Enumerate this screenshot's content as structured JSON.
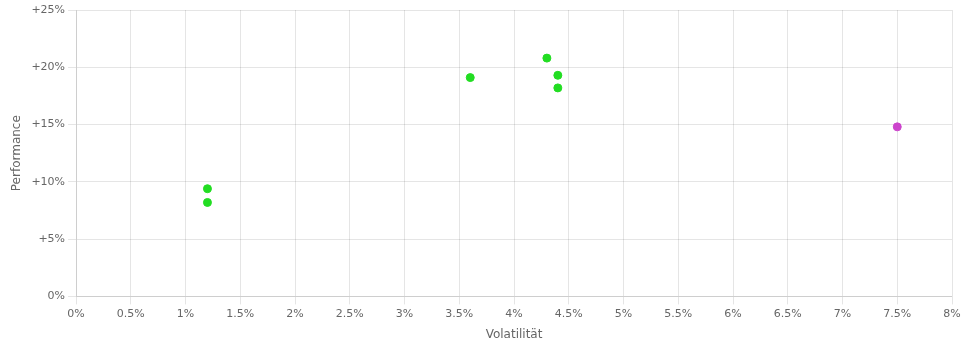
{
  "chart_data": {
    "type": "scatter",
    "xlabel": "Volatilität",
    "ylabel": "Performance",
    "series": [
      {
        "color": "#22dd22",
        "marker": "circle",
        "x": [
          0.012,
          0.012,
          0.036,
          0.043,
          0.044,
          0.044
        ],
        "values": [
          0.094,
          0.082,
          0.191,
          0.208,
          0.193,
          0.182
        ]
      },
      {
        "color": "#cc44cc",
        "marker": "circle",
        "x": [
          0.075
        ],
        "values": [
          0.148
        ]
      }
    ],
    "xlim": [
      0.0,
      0.08
    ],
    "ylim": [
      0.0,
      0.25
    ],
    "xticks": [
      {
        "value": 0.0,
        "label": "0%"
      },
      {
        "value": 0.005,
        "label": "0.5%"
      },
      {
        "value": 0.01,
        "label": "1%"
      },
      {
        "value": 0.015,
        "label": "1.5%"
      },
      {
        "value": 0.02,
        "label": "2%"
      },
      {
        "value": 0.025,
        "label": "2.5%"
      },
      {
        "value": 0.03,
        "label": "3%"
      },
      {
        "value": 0.035,
        "label": "3.5%"
      },
      {
        "value": 0.04,
        "label": "4%"
      },
      {
        "value": 0.045,
        "label": "4.5%"
      },
      {
        "value": 0.05,
        "label": "5%"
      },
      {
        "value": 0.055,
        "label": "5.5%"
      },
      {
        "value": 0.06,
        "label": "6%"
      },
      {
        "value": 0.065,
        "label": "6.5%"
      },
      {
        "value": 0.07,
        "label": "7%"
      },
      {
        "value": 0.075,
        "label": "7.5%"
      },
      {
        "value": 0.08,
        "label": "8%"
      }
    ],
    "yticks": [
      {
        "value": 0.0,
        "label": "0%"
      },
      {
        "value": 0.05,
        "label": "+5%"
      },
      {
        "value": 0.1,
        "label": "+10%"
      },
      {
        "value": 0.15,
        "label": "+15%"
      },
      {
        "value": 0.2,
        "label": "+20%"
      },
      {
        "value": 0.25,
        "label": "+25%"
      }
    ],
    "grid": true
  }
}
